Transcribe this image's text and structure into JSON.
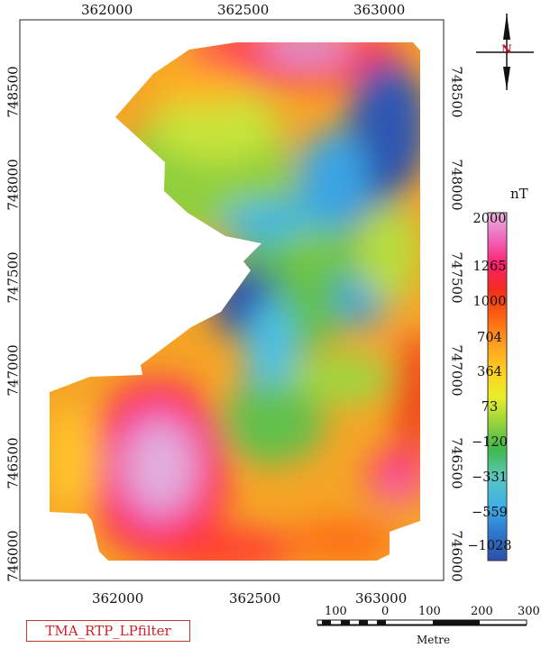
{
  "map": {
    "x_ticks": [
      "362000",
      "362500",
      "363000"
    ],
    "y_ticks": [
      "748500",
      "748000",
      "747500",
      "747000",
      "746500",
      "746000"
    ],
    "north_label": "N"
  },
  "legend": {
    "unit": "nT",
    "labels": [
      "2000",
      "1265",
      "1000",
      "704",
      "364",
      "73",
      "−120",
      "−331",
      "−559",
      "−1028"
    ],
    "colors": [
      "#e8b3de",
      "#f062b8",
      "#ff1f6a",
      "#f22c1e",
      "#fb6412",
      "#ff9f1f",
      "#ffd11f",
      "#e8ee2a",
      "#9cd43c",
      "#3fb84b",
      "#5bc7c0",
      "#3fb0e8",
      "#2f78cc",
      "#2d4ea8"
    ]
  },
  "scale_bar": {
    "labels": [
      "100",
      "0",
      "100",
      "200",
      "300"
    ],
    "unit": "Metre"
  },
  "caption": "TMA_RTP_LPfilter"
}
